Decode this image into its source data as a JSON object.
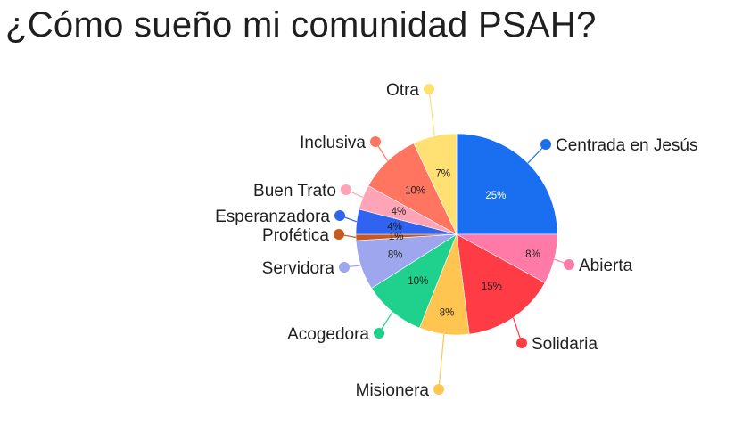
{
  "page": {
    "title": "¿Cómo sueño mi comunidad PSAH?"
  },
  "chart_data": {
    "type": "pie",
    "title": "¿Cómo sueño mi comunidad PSAH?",
    "slices": [
      {
        "name": "Centrada en Jesús",
        "value": 25,
        "label": "25%",
        "color": "#1a6ff0"
      },
      {
        "name": "Abierta",
        "value": 8,
        "label": "8%",
        "color": "#ff7aa6"
      },
      {
        "name": "Solidaria",
        "value": 15,
        "label": "15%",
        "color": "#ff3b45"
      },
      {
        "name": "Misionera",
        "value": 8,
        "label": "8%",
        "color": "#ffc550"
      },
      {
        "name": "Acogedora",
        "value": 10,
        "label": "10%",
        "color": "#1fd18c"
      },
      {
        "name": "Servidora",
        "value": 8,
        "label": "8%",
        "color": "#9ea6ee"
      },
      {
        "name": "Profética",
        "value": 1,
        "label": "1%",
        "color": "#c9581f"
      },
      {
        "name": "Esperanzadora",
        "value": 4,
        "label": "4%",
        "color": "#2f63f0"
      },
      {
        "name": "Buen Trato",
        "value": 4,
        "label": "4%",
        "color": "#ffa4b7"
      },
      {
        "name": "Inclusiva",
        "value": 10,
        "label": "10%",
        "color": "#ff7560"
      },
      {
        "name": "Otra",
        "value": 7,
        "label": "7%",
        "color": "#ffe072"
      }
    ],
    "start_angle_deg": 0,
    "direction": "clockwise",
    "legend": "callout labels"
  }
}
